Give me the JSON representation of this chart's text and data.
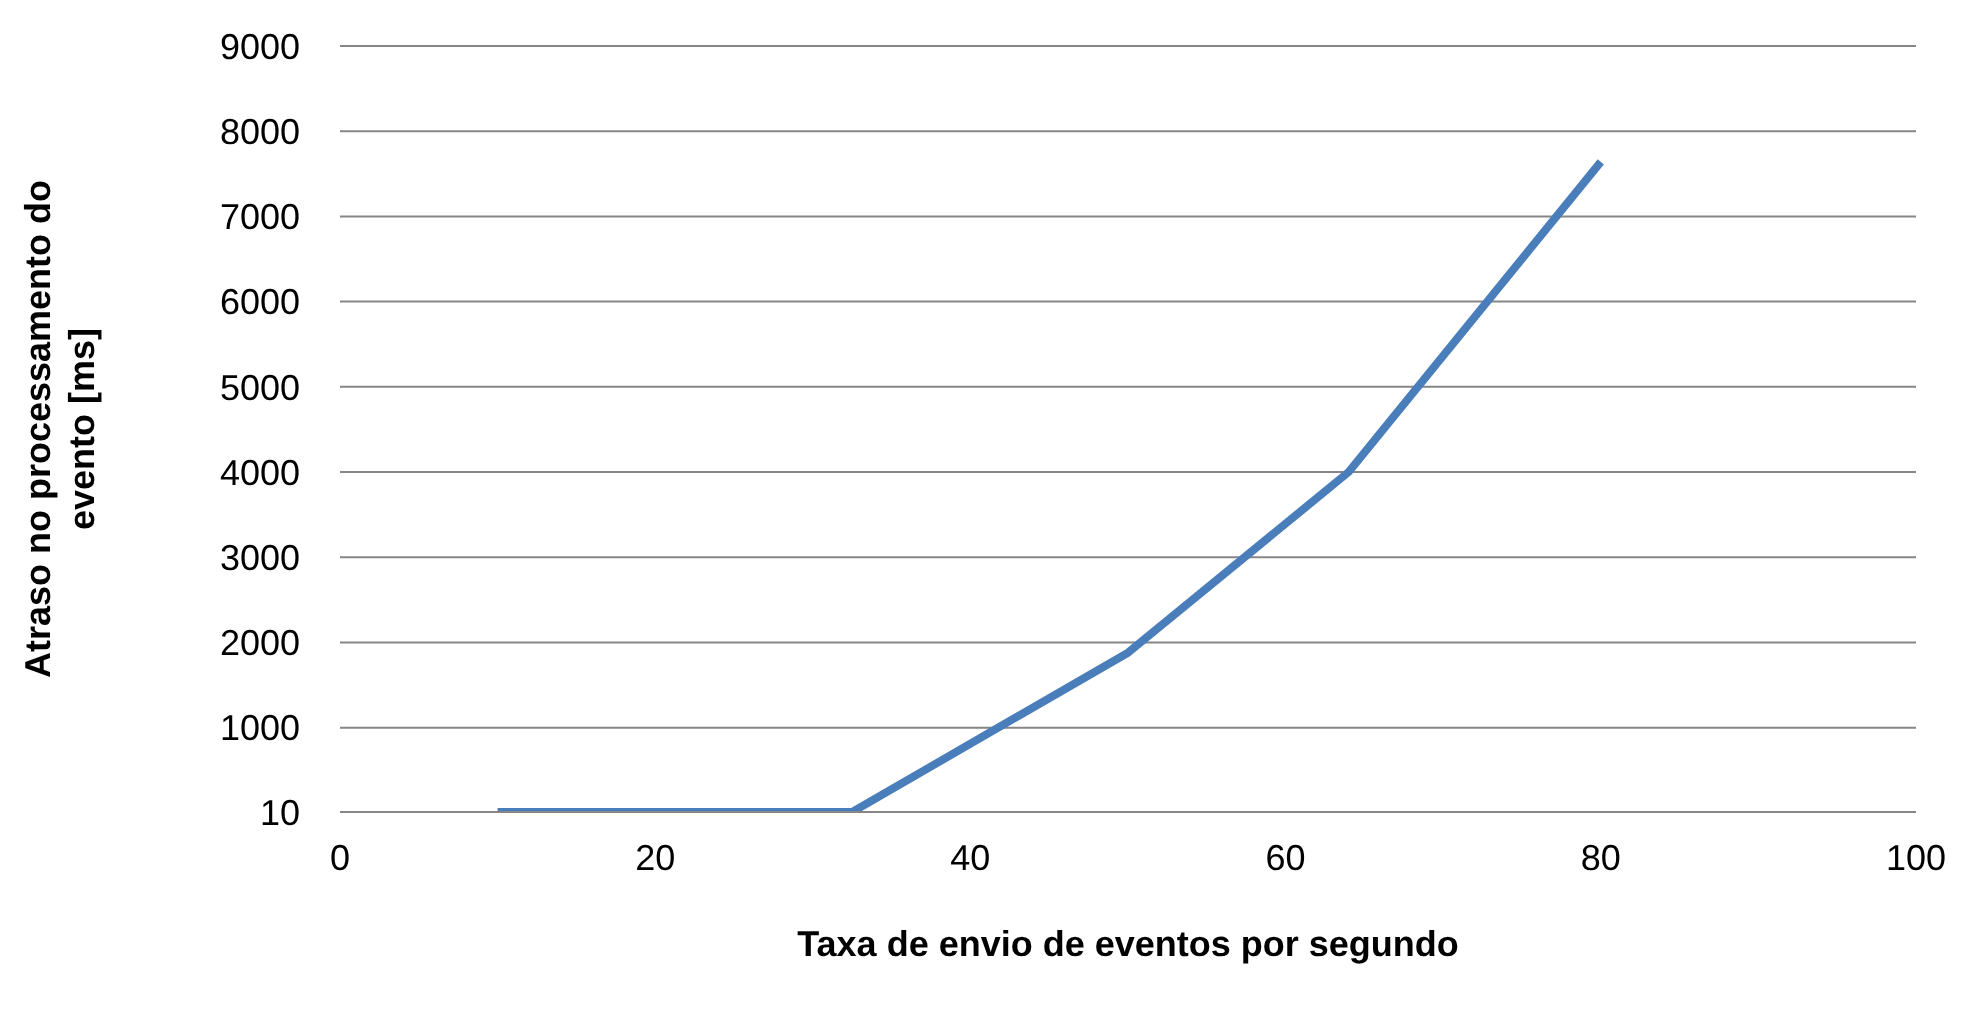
{
  "chart_data": {
    "type": "line",
    "xlabel": "Taxa de envio de eventos por segundo",
    "ylabel": "Atraso no processamento do evento [ms]",
    "x": [
      10,
      32.5,
      50,
      64,
      80
    ],
    "series": [
      {
        "color": "#4a7ebb",
        "values": [
          10,
          10,
          1880,
          4000,
          7640
        ]
      }
    ],
    "xlim": [
      0,
      100
    ],
    "xticks": [
      0,
      20,
      40,
      60,
      80,
      100
    ],
    "ylim": [
      10,
      9000
    ],
    "yticks": [
      10,
      1000,
      2000,
      3000,
      4000,
      5000,
      6000,
      7000,
      8000,
      9000
    ],
    "grid": "y",
    "legend": false,
    "marker": "none",
    "line_style": "solid"
  }
}
